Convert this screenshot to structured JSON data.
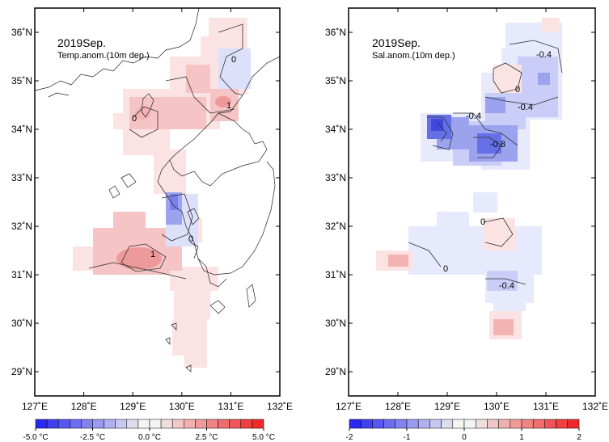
{
  "panels": [
    {
      "id": "temp",
      "title": "2019Sep.",
      "subtitle": "Temp.anom.(10m dep.)",
      "contour_labels": [
        "0",
        "0",
        "1",
        "0",
        "1"
      ],
      "colorbar": {
        "min": -5.0,
        "max": 5.0,
        "steps": 20,
        "tick_labels": [
          "-5.0 °C",
          "-2.5 °C",
          "0.0 °C",
          "2.5 °C",
          "5.0 °C"
        ],
        "tick_values": [
          -5.0,
          -2.5,
          0.0,
          2.5,
          5.0
        ]
      }
    },
    {
      "id": "sal",
      "title": "2019Sep.",
      "subtitle": "Sal.anom.(10m dep.)",
      "contour_labels": [
        "-0.4",
        "0",
        "-0.4",
        "-0.4",
        "-0.8",
        "0",
        "0",
        "-0.4"
      ],
      "colorbar": {
        "min": -2,
        "max": 2,
        "steps": 20,
        "tick_labels": [
          "-2",
          "-1",
          "0",
          "1",
          "2"
        ],
        "tick_values": [
          -2,
          -1,
          0,
          1,
          2
        ]
      }
    }
  ],
  "axes": {
    "lon_labels": [
      "127˚E",
      "128˚E",
      "129˚E",
      "130˚E",
      "131˚E",
      "132˚E"
    ],
    "lat_labels": [
      "36˚N",
      "35˚N",
      "34˚N",
      "33˚N",
      "32˚N",
      "31˚N",
      "30˚N",
      "29˚N"
    ],
    "lon_range": [
      127,
      132
    ],
    "lat_range": [
      28.5,
      36.5
    ]
  },
  "colors": {
    "neg_strong": "#3333ee",
    "neg_light": "#dde0fb",
    "pos_light": "#fbe0e0",
    "pos_strong": "#ee3333",
    "coast": "#222222"
  }
}
